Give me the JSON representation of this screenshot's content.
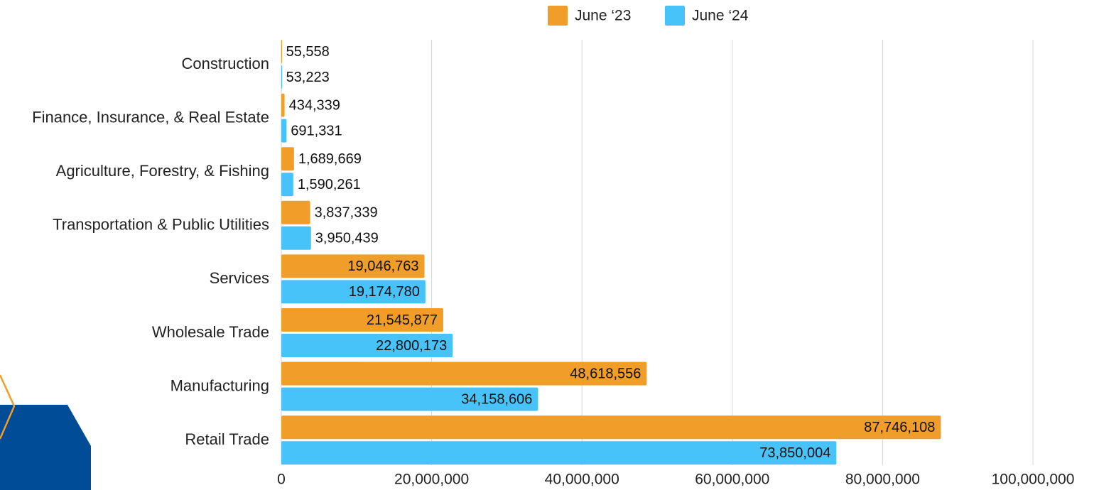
{
  "chart_data": {
    "type": "bar",
    "orientation": "horizontal",
    "categories": [
      "Construction",
      "Finance, Insurance, & Real Estate",
      "Agriculture, Forestry, & Fishing",
      "Transportation & Public Utilities",
      "Services",
      "Wholesale Trade",
      "Manufacturing",
      "Retail Trade"
    ],
    "series": [
      {
        "name": "June ‘23",
        "color": "#F09D2A",
        "values": [
          55558,
          434339,
          1689669,
          3837339,
          19046763,
          21545877,
          48618556,
          87746108
        ],
        "labels": [
          "55,558",
          "434,339",
          "1,689,669",
          "3,837,339",
          "19,046,763",
          "21,545,877",
          "48,618,556",
          "87,746,108"
        ]
      },
      {
        "name": "June ‘24",
        "color": "#47C3FA",
        "values": [
          53223,
          691331,
          1590261,
          3950439,
          19174780,
          22800173,
          34158606,
          73850004
        ],
        "labels": [
          "53,223",
          "691,331",
          "1,590,261",
          "3,950,439",
          "19,174,780",
          "22,800,173",
          "34,158,606",
          "73,850,004"
        ]
      }
    ],
    "xlim": [
      0,
      100000000
    ],
    "x_ticks": [
      0,
      20000000,
      40000000,
      60000000,
      80000000,
      100000000
    ],
    "x_tick_labels": [
      "0",
      "20,000,000",
      "40,000,000",
      "60,000,000",
      "80,000,000",
      "100,000,000"
    ],
    "grid": true,
    "legend_position": "top-center",
    "title": "",
    "xlabel": "",
    "ylabel": ""
  },
  "decoration": {
    "shape_fill": "#004C97",
    "outline_color": "#F09D2A"
  }
}
